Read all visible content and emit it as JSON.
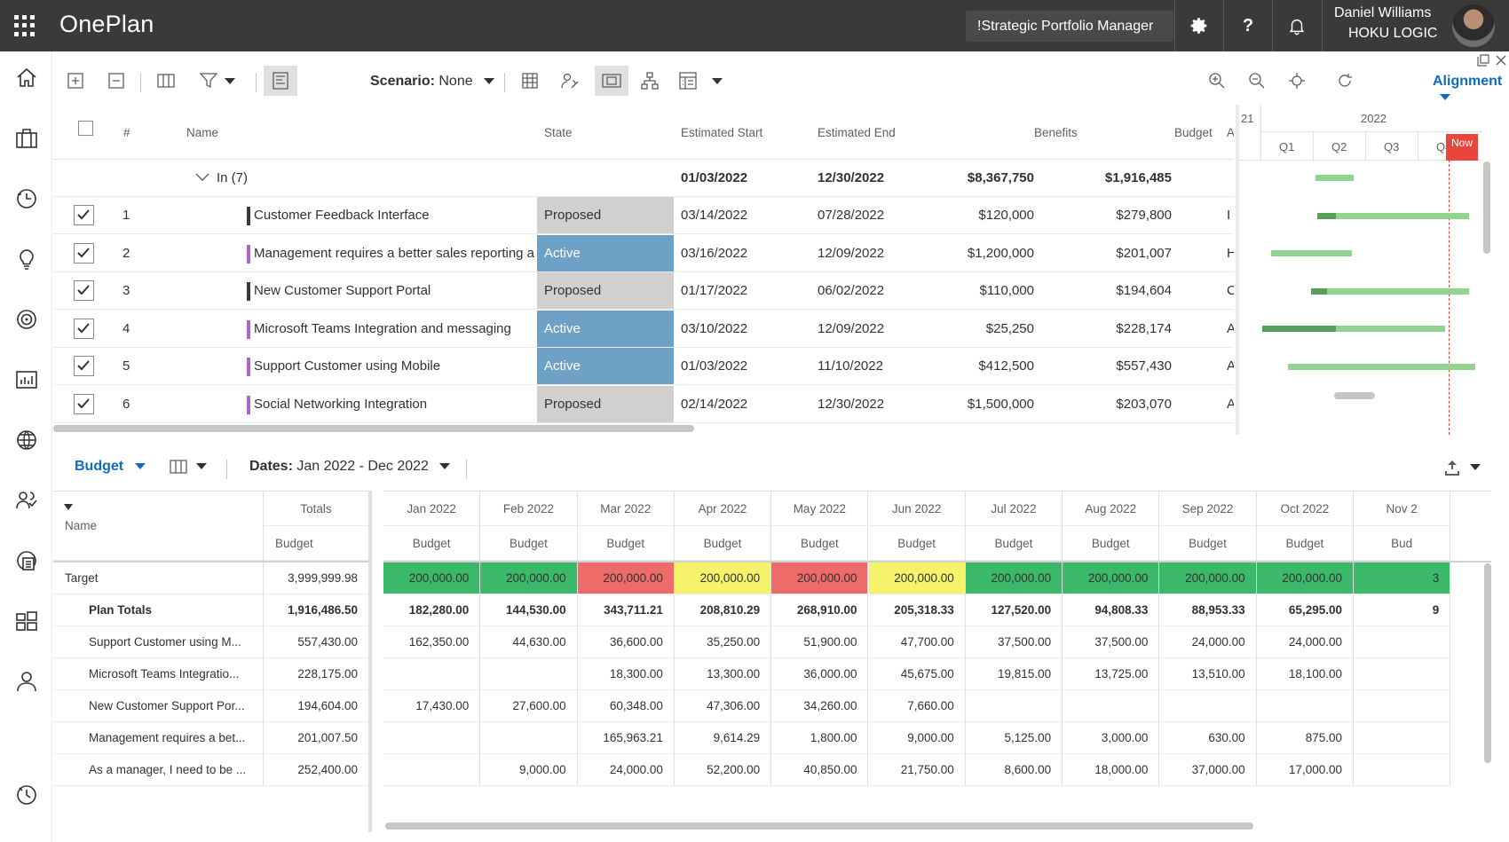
{
  "app": {
    "title": "OnePlan",
    "portfolio": "!Strategic Portfolio Manager"
  },
  "user": {
    "name": "Daniel Williams",
    "org": "HOKU LOGIC"
  },
  "topbar_icons": [
    "settings-icon",
    "help-icon",
    "notifications-icon"
  ],
  "left_nav": [
    "home-icon",
    "portfolio-icon",
    "timesheet-icon",
    "ideas-icon",
    "goals-icon",
    "reports-icon",
    "global-icon",
    "resources-icon",
    "capacity-icon",
    "workspace-icon",
    "user-icon",
    "history-icon"
  ],
  "toolbar": {
    "scenario_label": "Scenario:",
    "scenario_value": "None",
    "alignment_label": "Alignment"
  },
  "grid": {
    "headers": {
      "num": "#",
      "name": "Name",
      "state": "State",
      "start": "Estimated Start",
      "end": "Estimated End",
      "benefits": "Benefits",
      "budget": "Budget",
      "extra": "A"
    },
    "group": {
      "label": "In (7)",
      "start": "01/03/2022",
      "end": "12/30/2022",
      "benefits": "$8,367,750",
      "budget": "$1,916,485"
    },
    "rows": [
      {
        "num": "1",
        "name": "Customer Feedback Interface",
        "state": "Proposed",
        "start": "03/14/2022",
        "end": "07/28/2022",
        "benefits": "$120,000",
        "budget": "$279,800",
        "extra": "I",
        "color": "#3b3a39"
      },
      {
        "num": "2",
        "name": "Management requires a better sales reporting a",
        "state": "Active",
        "start": "03/16/2022",
        "end": "12/09/2022",
        "benefits": "$1,200,000",
        "budget": "$201,007",
        "extra": "H",
        "color": "#b066c8"
      },
      {
        "num": "3",
        "name": "New Customer Support Portal",
        "state": "Proposed",
        "start": "01/17/2022",
        "end": "06/02/2022",
        "benefits": "$110,000",
        "budget": "$194,604",
        "extra": "C",
        "color": "#3b3a39"
      },
      {
        "num": "4",
        "name": "Microsoft Teams Integration and messaging",
        "state": "Active",
        "start": "03/10/2022",
        "end": "12/09/2022",
        "benefits": "$25,250",
        "budget": "$228,174",
        "extra": "A",
        "color": "#b066c8"
      },
      {
        "num": "5",
        "name": "Support Customer using Mobile",
        "state": "Active",
        "start": "01/03/2022",
        "end": "11/10/2022",
        "benefits": "$412,500",
        "budget": "$557,430",
        "extra": "A",
        "color": "#b066c8"
      },
      {
        "num": "6",
        "name": "Social Networking Integration",
        "state": "Proposed",
        "start": "02/14/2022",
        "end": "12/30/2022",
        "benefits": "$1,500,000",
        "budget": "$203,070",
        "extra": "A",
        "color": "#b066c8"
      }
    ],
    "state_colors": {
      "Proposed": "#d2d0ce",
      "Active": "#6fa1c7"
    }
  },
  "gantt": {
    "year_prev": "21",
    "year": "2022",
    "quarters": [
      "Q1",
      "Q2",
      "Q3",
      "Q4"
    ],
    "now_label": "Now",
    "bars": [
      {
        "start": 0.25,
        "end": 0.43,
        "progress": 0.0
      },
      {
        "start": 0.26,
        "end": 0.97,
        "progress": 0.12
      },
      {
        "start": 0.04,
        "end": 0.42,
        "progress": 0.0
      },
      {
        "start": 0.23,
        "end": 0.97,
        "progress": 0.1
      },
      {
        "start": 0.0,
        "end": 0.86,
        "progress": 0.4
      },
      {
        "start": 0.12,
        "end": 1.0,
        "progress": 0.0
      }
    ]
  },
  "lower": {
    "view_label": "Budget",
    "dates_label": "Dates:",
    "dates_value": "Jan 2022 - Dec 2022",
    "headers": {
      "name": "Name",
      "totals": "Totals",
      "sub": "Budget"
    },
    "months": [
      "Jan 2022",
      "Feb 2022",
      "Mar 2022",
      "Apr 2022",
      "May 2022",
      "Jun 2022",
      "Jul 2022",
      "Aug 2022",
      "Sep 2022",
      "Oct 2022",
      "Nov 2"
    ],
    "month_sub_last": "Bud",
    "target": {
      "name": "Target",
      "total": "3,999,999.98",
      "values": [
        "200,000.00",
        "200,000.00",
        "200,000.00",
        "200,000.00",
        "200,000.00",
        "200,000.00",
        "200,000.00",
        "200,000.00",
        "200,000.00",
        "200,000.00",
        "3"
      ],
      "colors": [
        "#3cb86a",
        "#3cb86a",
        "#ed6b68",
        "#f5f36a",
        "#ed6b68",
        "#f5f36a",
        "#3cb86a",
        "#3cb86a",
        "#3cb86a",
        "#3cb86a",
        "#3cb86a"
      ]
    },
    "plan_totals": {
      "name": "Plan Totals",
      "total": "1,916,486.50",
      "values": [
        "182,280.00",
        "144,530.00",
        "343,711.21",
        "208,810.29",
        "268,910.00",
        "205,318.33",
        "127,520.00",
        "94,808.33",
        "88,953.33",
        "65,295.00",
        "9"
      ]
    },
    "rows": [
      {
        "name": "Support Customer using M...",
        "total": "557,430.00",
        "values": [
          "162,350.00",
          "44,630.00",
          "36,600.00",
          "35,250.00",
          "51,900.00",
          "47,700.00",
          "37,500.00",
          "37,500.00",
          "24,000.00",
          "24,000.00",
          ""
        ]
      },
      {
        "name": "Microsoft Teams Integratio...",
        "total": "228,175.00",
        "values": [
          "",
          "",
          "18,300.00",
          "13,300.00",
          "36,000.00",
          "45,675.00",
          "19,815.00",
          "13,725.00",
          "13,510.00",
          "18,100.00",
          ""
        ]
      },
      {
        "name": "New Customer Support Por...",
        "total": "194,604.00",
        "values": [
          "17,430.00",
          "27,600.00",
          "60,348.00",
          "47,306.00",
          "34,260.00",
          "7,660.00",
          "",
          "",
          "",
          "",
          ""
        ]
      },
      {
        "name": "Management requires a bet...",
        "total": "201,007.50",
        "values": [
          "",
          "",
          "165,963.21",
          "9,614.29",
          "1,800.00",
          "9,000.00",
          "5,125.00",
          "3,000.00",
          "630.00",
          "875.00",
          ""
        ]
      },
      {
        "name": "As a manager, I need to be ...",
        "total": "252,400.00",
        "values": [
          "",
          "9,000.00",
          "24,000.00",
          "52,200.00",
          "40,850.00",
          "21,750.00",
          "8,600.00",
          "18,000.00",
          "37,000.00",
          "17,000.00",
          ""
        ]
      }
    ]
  }
}
